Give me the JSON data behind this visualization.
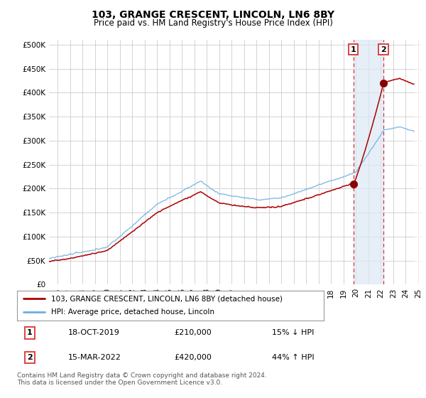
{
  "title": "103, GRANGE CRESCENT, LINCOLN, LN6 8BY",
  "subtitle": "Price paid vs. HM Land Registry's House Price Index (HPI)",
  "ylabel_ticks": [
    "£0",
    "£50K",
    "£100K",
    "£150K",
    "£200K",
    "£250K",
    "£300K",
    "£350K",
    "£400K",
    "£450K",
    "£500K"
  ],
  "ytick_values": [
    0,
    50000,
    100000,
    150000,
    200000,
    250000,
    300000,
    350000,
    400000,
    450000,
    500000
  ],
  "xlim_start": 1995.3,
  "xlim_end": 2025.3,
  "ylim_top": 510000,
  "sale1_x": 2019.79,
  "sale1_price": 210000,
  "sale2_x": 2022.21,
  "sale2_price": 420000,
  "hpi_color": "#6aade4",
  "price_color": "#aa0000",
  "dot_color": "#880000",
  "vline_color": "#dd3333",
  "background_color": "#ffffff",
  "plot_bg_color": "#ffffff",
  "grid_color": "#cccccc",
  "highlight_bg": "#dce9f5",
  "legend_line1": "103, GRANGE CRESCENT, LINCOLN, LN6 8BY (detached house)",
  "legend_line2": "HPI: Average price, detached house, Lincoln",
  "table_row1": [
    "1",
    "18-OCT-2019",
    "£210,000",
    "15% ↓ HPI"
  ],
  "table_row2": [
    "2",
    "15-MAR-2022",
    "£420,000",
    "44% ↑ HPI"
  ],
  "footer": "Contains HM Land Registry data © Crown copyright and database right 2024.\nThis data is licensed under the Open Government Licence v3.0.",
  "title_fontsize": 10,
  "subtitle_fontsize": 8.5,
  "axis_fontsize": 7.5
}
